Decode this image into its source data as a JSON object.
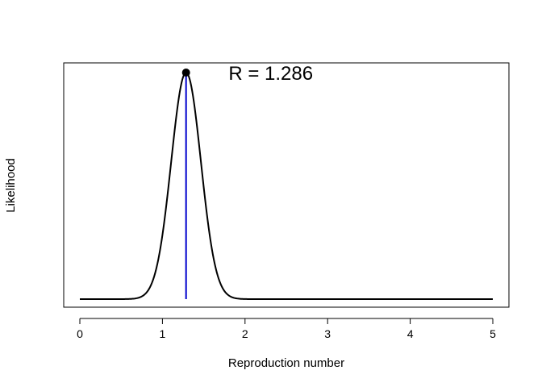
{
  "chart_data": {
    "type": "line",
    "xlabel": "Reproduction number",
    "ylabel": "Likelihood",
    "xlim": [
      0,
      5
    ],
    "x_ticks": [
      0,
      1,
      2,
      3,
      4,
      5
    ],
    "x_tick_labels": [
      "0",
      "1",
      "2",
      "3",
      "4",
      "5"
    ],
    "y_ticks_shown": false,
    "grid": false,
    "curve": {
      "description": "bell-shaped likelihood curve",
      "x_min": 0,
      "x_max": 5,
      "peak_x": 1.286,
      "approx_sd": 0.18,
      "color": "#000000"
    },
    "peak_marker": {
      "x": 1.286,
      "color": "#000000"
    },
    "vertical_line": {
      "x": 1.286,
      "color": "#0000cc"
    },
    "annotation": {
      "text": "R = 1.286",
      "x": 1.8
    }
  }
}
